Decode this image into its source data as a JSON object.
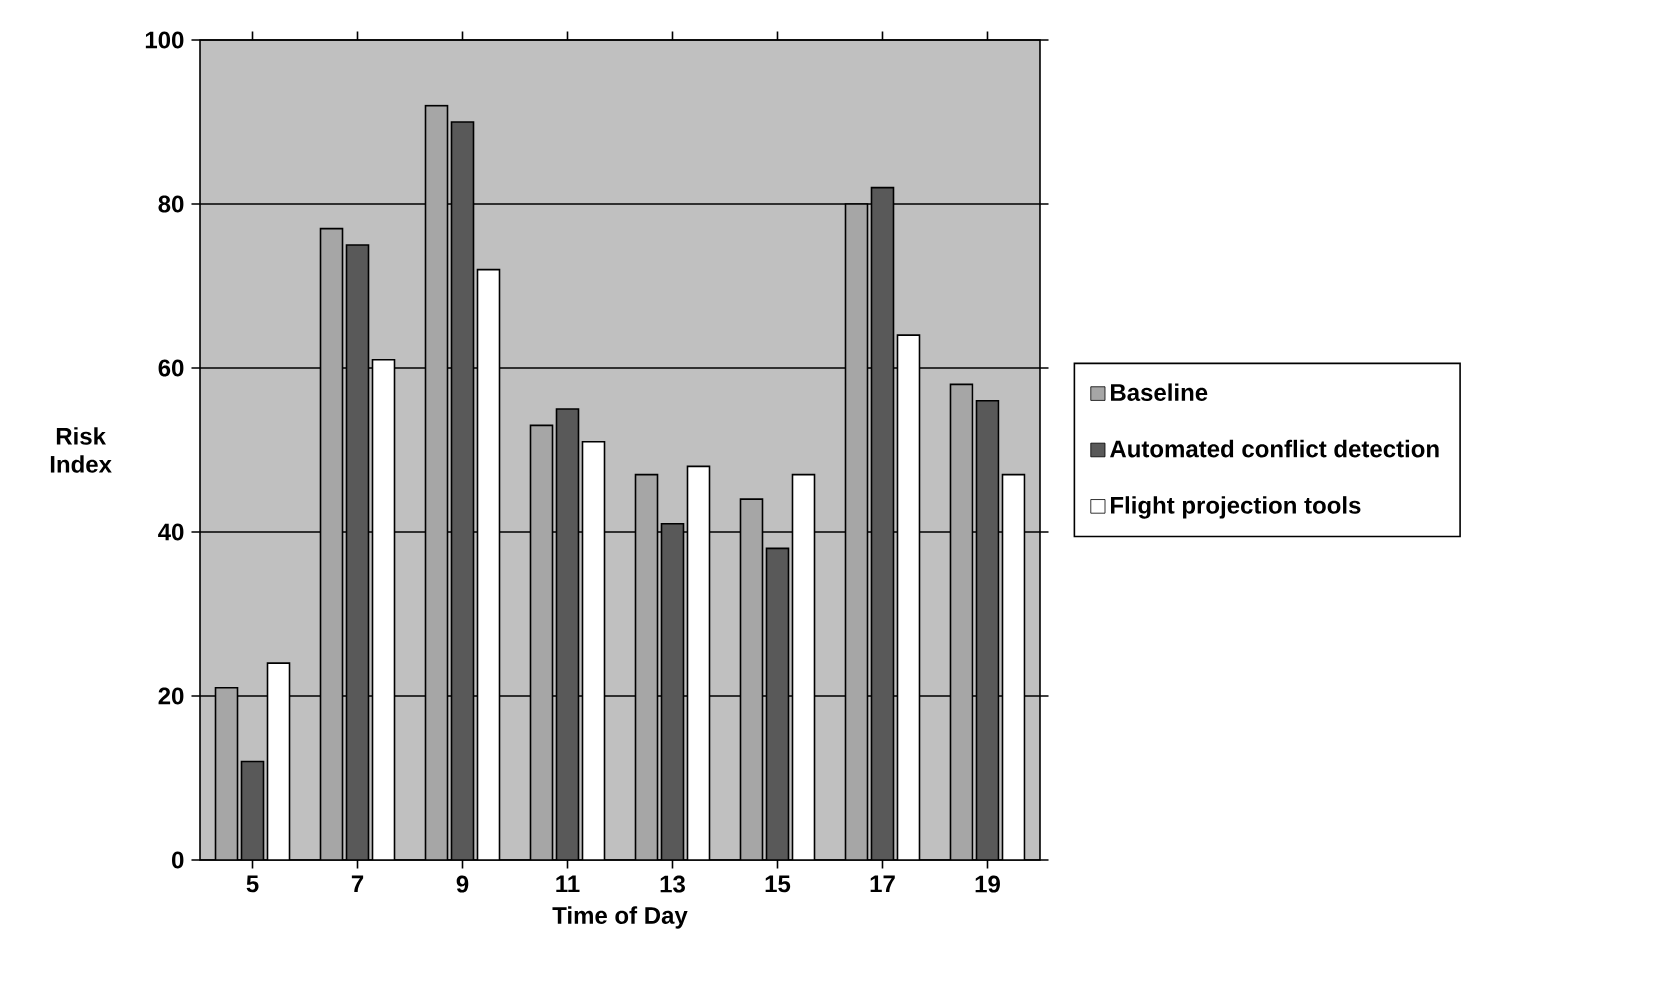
{
  "chart_data": {
    "type": "bar",
    "xlabel": "Time of Day",
    "ylabel": "Risk Index",
    "categories": [
      "5",
      "7",
      "9",
      "11",
      "13",
      "15",
      "17",
      "19"
    ],
    "series": [
      {
        "name": "Baseline",
        "color": "#a6a6a6",
        "values": [
          21,
          77,
          92,
          53,
          47,
          44,
          80,
          58
        ]
      },
      {
        "name": "Automated conflict detection",
        "color": "#595959",
        "values": [
          12,
          75,
          90,
          55,
          41,
          38,
          82,
          56
        ]
      },
      {
        "name": "Flight projection tools",
        "color": "#ffffff",
        "values": [
          24,
          61,
          72,
          51,
          48,
          47,
          64,
          47
        ]
      }
    ],
    "ylim": [
      0,
      100
    ],
    "yticks": [
      0,
      20,
      40,
      60,
      80,
      100
    ],
    "grid": "y",
    "legend": "right"
  }
}
